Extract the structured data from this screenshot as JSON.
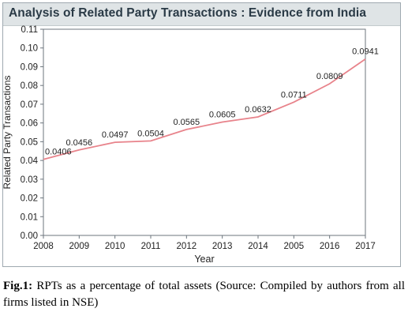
{
  "header": {
    "title": "Analysis of Related Party Transactions : Evidence from India"
  },
  "caption": {
    "label": "Fig.1:",
    "text": "RPTs as a percentage of total assets (Source: Compiled by authors from all firms listed in NSE)"
  },
  "chart_data": {
    "type": "line",
    "title": "",
    "xlabel": "Year",
    "ylabel": "Related Party Transactions",
    "categories": [
      "2008",
      "2009",
      "2010",
      "2011",
      "2012",
      "2013",
      "2014",
      "2005",
      "2016",
      "2017"
    ],
    "series": [
      {
        "values": [
          0.0406,
          0.0456,
          0.0497,
          0.0504,
          0.0565,
          0.0605,
          0.0632,
          0.0711,
          0.0809,
          0.0941
        ],
        "labels": [
          "0.0406",
          "0.0456",
          "0.0497",
          "0.0504",
          "0.0565",
          "0.0605",
          "0.0632",
          "0.0711",
          "0.0809",
          "0.0941"
        ],
        "color": "#e8838b"
      }
    ],
    "yticks": [
      "0.00",
      "0.01",
      "0.02",
      "0.03",
      "0.04",
      "0.05",
      "0.06",
      "0.07",
      "0.08",
      "0.09",
      "0.10",
      "0.11"
    ],
    "ylim": [
      0,
      0.11
    ],
    "grid": false,
    "legend": "none"
  }
}
